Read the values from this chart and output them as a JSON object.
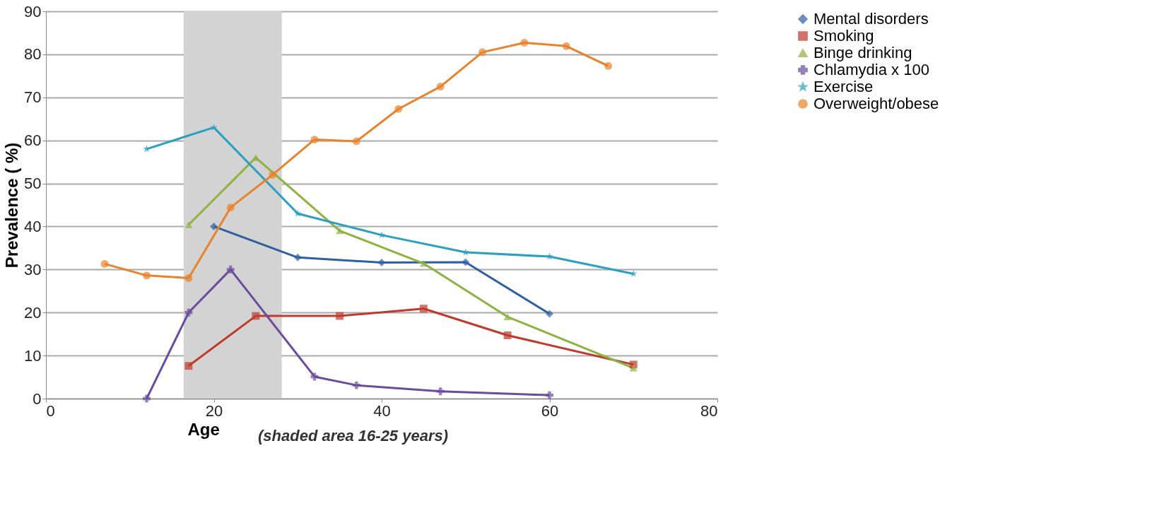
{
  "chart_data": {
    "type": "line",
    "xlabel": "Age",
    "ylabel": "Prevalence ( %)",
    "annotations": [
      "(shaded area 16-25 years)"
    ],
    "xlim": [
      0,
      80
    ],
    "xticks": [
      0,
      20,
      40,
      60,
      80
    ],
    "ylim": [
      0,
      90
    ],
    "yticks": [
      0,
      10,
      20,
      30,
      40,
      50,
      60,
      70,
      80,
      90
    ],
    "grid": "y",
    "legend": "right",
    "line_style": "solid",
    "bands": [
      {
        "axis": "x",
        "from": 16.4,
        "to": 28.1,
        "color": "#d3d3d3"
      }
    ],
    "series": [
      {
        "name": "Mental disorders",
        "color": "#2e5fa3",
        "marker": "diamond",
        "x": [
          20,
          30,
          40,
          50,
          60
        ],
        "values": [
          40,
          32.8,
          31.6,
          31.7,
          19.7
        ]
      },
      {
        "name": "Smoking",
        "color": "#c0392b",
        "marker": "square",
        "x": [
          17,
          25,
          35,
          45,
          55,
          70
        ],
        "values": [
          7.6,
          19.2,
          19.2,
          20.9,
          14.7,
          7.9
        ]
      },
      {
        "name": "Binge drinking",
        "color": "#8db23f",
        "marker": "triangle",
        "x": [
          17,
          25,
          35,
          45,
          55,
          70
        ],
        "values": [
          40.4,
          56,
          39,
          31.4,
          19,
          7.1
        ]
      },
      {
        "name": "Chlamydia  x  100",
        "color": "#6a4c9c",
        "marker": "cross",
        "x": [
          12,
          17,
          22,
          32,
          37,
          47,
          60
        ],
        "values": [
          0,
          20,
          30,
          5.1,
          3.1,
          1.7,
          0.8
        ]
      },
      {
        "name": "Exercise",
        "color": "#2aa0c0",
        "marker": "star",
        "x": [
          12,
          20,
          30,
          40,
          50,
          60,
          70
        ],
        "values": [
          58,
          63,
          43,
          38,
          34,
          33,
          29
        ]
      },
      {
        "name": "Overweight/obese",
        "color": "#e8822b",
        "marker": "circle",
        "x": [
          7,
          12,
          17,
          22,
          27,
          32,
          37,
          42,
          47,
          52,
          57,
          62,
          67
        ],
        "values": [
          31.3,
          28.6,
          28,
          44.4,
          52,
          60.2,
          59.8,
          67.3,
          72.5,
          80.5,
          82.7,
          81.9,
          77.3
        ]
      }
    ]
  }
}
